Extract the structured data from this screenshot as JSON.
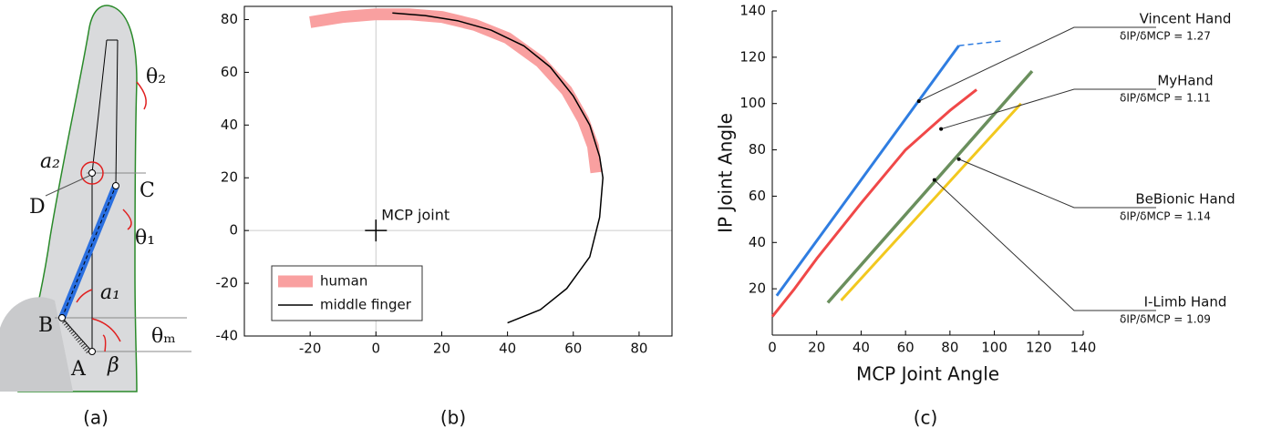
{
  "diagram": {
    "labels": {
      "theta2": "θ₂",
      "a2": "a₂",
      "D": "D",
      "C": "C",
      "theta1": "θ₁",
      "a1": "a₁",
      "B": "B",
      "thetam": "θₘ",
      "A": "A",
      "beta": "β"
    },
    "caption": "(a)"
  },
  "chart_data": [
    {
      "type": "line",
      "caption": "(b)",
      "xlim": [
        -40,
        90
      ],
      "xticks": [
        -20,
        0,
        20,
        40,
        60,
        80
      ],
      "ylim": [
        -40,
        85
      ],
      "yticks": [
        -40,
        -20,
        0,
        20,
        40,
        60,
        80
      ],
      "box": true,
      "zero_lines": true,
      "legend": "lower left",
      "annotations": [
        {
          "label": "MCP joint",
          "x": 0,
          "y": 0
        }
      ],
      "series": [
        {
          "name": "human",
          "color": "#f9a0a0",
          "linewidth": 13,
          "x": [
            -20,
            -10,
            0,
            10,
            20,
            30,
            40,
            50,
            58,
            63,
            66,
            67
          ],
          "values": [
            79,
            81,
            82,
            82,
            81,
            78,
            73,
            64,
            53,
            42,
            32,
            22
          ]
        },
        {
          "name": "middle finger",
          "color": "#000000",
          "linewidth": 1.5,
          "x": [
            5,
            15,
            25,
            35,
            45,
            53,
            60,
            65,
            68,
            69,
            68,
            65,
            58,
            50,
            40
          ],
          "values": [
            82.5,
            81.5,
            79.5,
            76,
            70,
            62,
            51,
            40,
            28,
            20,
            5,
            -10,
            -22,
            -30,
            -35
          ]
        }
      ]
    },
    {
      "type": "line",
      "caption": "(c)",
      "xlabel": "MCP Joint Angle",
      "ylabel": "IP Joint Angle",
      "xlim": [
        0,
        140
      ],
      "xticks": [
        0,
        20,
        40,
        60,
        80,
        100,
        120,
        140
      ],
      "ylim": [
        0,
        140
      ],
      "yticks": [
        20,
        40,
        60,
        80,
        100,
        120,
        140
      ],
      "box": false,
      "series": [
        {
          "name": "Vincent Hand",
          "ratio": "δIP/δMCP = 1.27",
          "color": "#2f7de1",
          "linewidth": 3,
          "x": [
            2,
            84
          ],
          "values": [
            17,
            125
          ],
          "extension_x": [
            84,
            103
          ],
          "extension_values": [
            125,
            127
          ],
          "callout": {
            "x": 66,
            "y": 101
          }
        },
        {
          "name": "MyHand",
          "ratio": "δIP/δMCP = 1.11",
          "color": "#f04848",
          "linewidth": 3,
          "x": [
            0,
            10,
            20,
            40,
            60,
            80,
            92
          ],
          "values": [
            8,
            20,
            33,
            57,
            80,
            97,
            106
          ],
          "callout": {
            "x": 76,
            "y": 89
          }
        },
        {
          "name": "BeBionic Hand",
          "ratio": "δIP/δMCP = 1.14",
          "color": "#6a8f5d",
          "linewidth": 3.5,
          "x": [
            25,
            117
          ],
          "values": [
            14,
            114
          ],
          "callout": {
            "x": 84,
            "y": 76
          }
        },
        {
          "name": "I-Limb Hand",
          "ratio": "δIP/δMCP = 1.09",
          "color": "#f2c81e",
          "linewidth": 3,
          "x": [
            31,
            112
          ],
          "values": [
            15,
            100
          ],
          "callout": {
            "x": 73,
            "y": 67
          }
        }
      ]
    }
  ]
}
